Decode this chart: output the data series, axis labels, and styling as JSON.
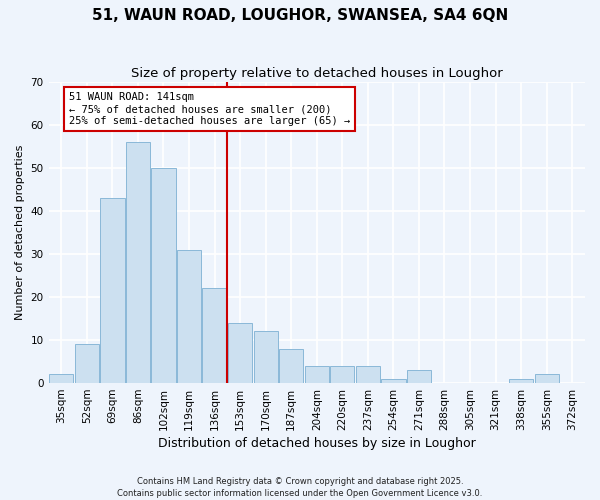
{
  "title": "51, WAUN ROAD, LOUGHOR, SWANSEA, SA4 6QN",
  "subtitle": "Size of property relative to detached houses in Loughor",
  "xlabel": "Distribution of detached houses by size in Loughor",
  "ylabel": "Number of detached properties",
  "bar_color": "#cce0f0",
  "bar_edge_color": "#8ab8d8",
  "background_color": "#eef4fc",
  "grid_color": "#ffffff",
  "categories": [
    "35sqm",
    "52sqm",
    "69sqm",
    "86sqm",
    "102sqm",
    "119sqm",
    "136sqm",
    "153sqm",
    "170sqm",
    "187sqm",
    "204sqm",
    "220sqm",
    "237sqm",
    "254sqm",
    "271sqm",
    "288sqm",
    "305sqm",
    "321sqm",
    "338sqm",
    "355sqm",
    "372sqm"
  ],
  "values": [
    2,
    9,
    43,
    56,
    50,
    31,
    22,
    14,
    12,
    8,
    4,
    4,
    4,
    1,
    3,
    0,
    0,
    0,
    1,
    2,
    0
  ],
  "vline_index": 6.5,
  "vline_color": "#cc0000",
  "annotation_line1": "51 WAUN ROAD: 141sqm",
  "annotation_line2": "← 75% of detached houses are smaller (200)",
  "annotation_line3": "25% of semi-detached houses are larger (65) →",
  "ylim": [
    0,
    70
  ],
  "yticks": [
    0,
    10,
    20,
    30,
    40,
    50,
    60,
    70
  ],
  "footnote": "Contains HM Land Registry data © Crown copyright and database right 2025.\nContains public sector information licensed under the Open Government Licence v3.0.",
  "title_fontsize": 11,
  "subtitle_fontsize": 9.5,
  "xlabel_fontsize": 9,
  "ylabel_fontsize": 8,
  "tick_fontsize": 7.5,
  "annotation_fontsize": 7.5,
  "footnote_fontsize": 6
}
